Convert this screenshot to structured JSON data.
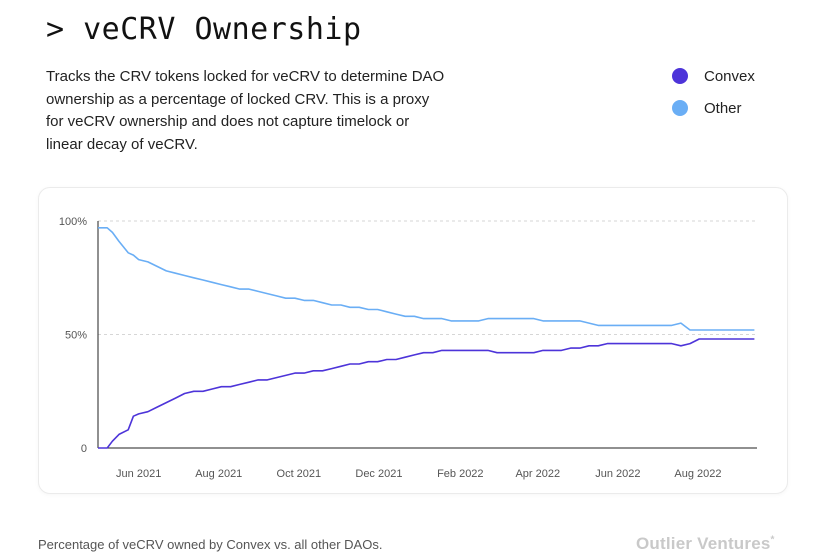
{
  "header": {
    "title": "> veCRV Ownership",
    "description": "Tracks the CRV tokens locked for veCRV to determine DAO ownership as a percentage of locked CRV. This is a proxy for veCRV ownership and does not capture timelock or linear decay of veCRV."
  },
  "legend": [
    {
      "label": "Convex",
      "color": "#4d34d9"
    },
    {
      "label": "Other",
      "color": "#6aaef5"
    }
  ],
  "footer": {
    "caption": "Percentage of veCRV owned by Convex vs. all other DAOs.",
    "brand": "Outlier Ventures",
    "brand_mark": "*"
  },
  "chart_data": {
    "type": "line",
    "title": "",
    "xlabel": "",
    "ylabel": "",
    "ylim": [
      0,
      100
    ],
    "xlim": [
      "2021-05-01",
      "2022-09-15"
    ],
    "grid": true,
    "legend_position": "top-right",
    "y_ticks": [
      {
        "value": 0,
        "label": "0"
      },
      {
        "value": 50,
        "label": "50%"
      },
      {
        "value": 100,
        "label": "100%"
      }
    ],
    "x_ticks": [
      {
        "value": "2021-06-01",
        "label": "Jun 2021"
      },
      {
        "value": "2021-08-01",
        "label": "Aug 2021"
      },
      {
        "value": "2021-10-01",
        "label": "Oct 2021"
      },
      {
        "value": "2021-12-01",
        "label": "Dec 2021"
      },
      {
        "value": "2022-02-01",
        "label": "Feb 2022"
      },
      {
        "value": "2022-04-01",
        "label": "Apr 2022"
      },
      {
        "value": "2022-06-01",
        "label": "Jun 2022"
      },
      {
        "value": "2022-08-01",
        "label": "Aug 2022"
      }
    ],
    "x": [
      "2021-05-01",
      "2021-05-08",
      "2021-05-12",
      "2021-05-17",
      "2021-05-24",
      "2021-05-28",
      "2021-06-01",
      "2021-06-08",
      "2021-06-15",
      "2021-06-22",
      "2021-06-29",
      "2021-07-06",
      "2021-07-13",
      "2021-07-20",
      "2021-07-27",
      "2021-08-03",
      "2021-08-10",
      "2021-08-17",
      "2021-08-24",
      "2021-08-31",
      "2021-09-07",
      "2021-09-14",
      "2021-09-21",
      "2021-09-28",
      "2021-10-05",
      "2021-10-12",
      "2021-10-19",
      "2021-10-26",
      "2021-11-02",
      "2021-11-09",
      "2021-11-16",
      "2021-11-23",
      "2021-11-30",
      "2021-12-07",
      "2021-12-14",
      "2021-12-21",
      "2021-12-28",
      "2022-01-04",
      "2022-01-11",
      "2022-01-18",
      "2022-01-25",
      "2022-02-01",
      "2022-02-08",
      "2022-02-15",
      "2022-02-22",
      "2022-03-01",
      "2022-03-08",
      "2022-03-15",
      "2022-03-22",
      "2022-03-29",
      "2022-04-05",
      "2022-04-12",
      "2022-04-19",
      "2022-04-26",
      "2022-05-03",
      "2022-05-10",
      "2022-05-17",
      "2022-05-24",
      "2022-05-31",
      "2022-06-07",
      "2022-06-14",
      "2022-06-21",
      "2022-06-28",
      "2022-07-05",
      "2022-07-12",
      "2022-07-19",
      "2022-07-26",
      "2022-08-02",
      "2022-08-09",
      "2022-08-16",
      "2022-08-23",
      "2022-08-30",
      "2022-09-06",
      "2022-09-13"
    ],
    "series": [
      {
        "name": "Convex",
        "color": "#4d34d9",
        "values": [
          0,
          0,
          3,
          6,
          8,
          14,
          15,
          16,
          18,
          20,
          22,
          24,
          25,
          25,
          26,
          27,
          27,
          28,
          29,
          30,
          30,
          31,
          32,
          33,
          33,
          34,
          34,
          35,
          36,
          37,
          37,
          38,
          38,
          39,
          39,
          40,
          41,
          42,
          42,
          43,
          43,
          43,
          43,
          43,
          43,
          42,
          42,
          42,
          42,
          42,
          43,
          43,
          43,
          44,
          44,
          45,
          45,
          46,
          46,
          46,
          46,
          46,
          46,
          46,
          46,
          45,
          46,
          48,
          48,
          48,
          48,
          48,
          48,
          48
        ]
      },
      {
        "name": "Other",
        "color": "#6aaef5",
        "values": [
          97,
          97,
          95,
          91,
          86,
          85,
          83,
          82,
          80,
          78,
          77,
          76,
          75,
          74,
          73,
          72,
          71,
          70,
          70,
          69,
          68,
          67,
          66,
          66,
          65,
          65,
          64,
          63,
          63,
          62,
          62,
          61,
          61,
          60,
          59,
          58,
          58,
          57,
          57,
          57,
          56,
          56,
          56,
          56,
          57,
          57,
          57,
          57,
          57,
          57,
          56,
          56,
          56,
          56,
          56,
          55,
          54,
          54,
          54,
          54,
          54,
          54,
          54,
          54,
          54,
          55,
          52,
          52,
          52,
          52,
          52,
          52,
          52,
          52
        ]
      }
    ]
  }
}
